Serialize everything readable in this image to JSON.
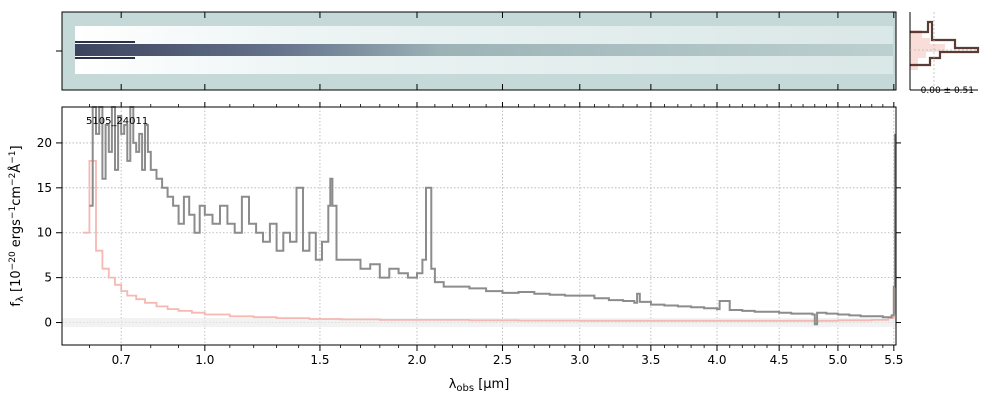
{
  "figure": {
    "object_id": "5105_24011",
    "profile_label": "0.00 ± 0.51"
  },
  "chart_data": {
    "type": "line",
    "xlabel_html": "λ<tspan font-size='10' dy='3'>obs</tspan><tspan dy='-3'> [μm]</tspan>",
    "ylabel_text": "f_λ [10^-20 ergs^-1 cm^-2 Å^-1]",
    "x_ticks": [
      0.7,
      1.0,
      1.5,
      2.0,
      2.5,
      3.0,
      3.5,
      4.0,
      4.5,
      5.0,
      5.5
    ],
    "x_tick_labels": [
      "0.7",
      "1.0",
      "1.5",
      "2.0",
      "2.5",
      "3.0",
      "3.5",
      "4.0",
      "4.5",
      "5.0",
      "5.5"
    ],
    "y_ticks": [
      0,
      5,
      10,
      15,
      20
    ],
    "y_tick_labels": [
      "0",
      "5",
      "10",
      "15",
      "20"
    ],
    "xlim": [
      0.52,
      5.52
    ],
    "ylim": [
      -2.5,
      24
    ],
    "x_scale": "sqrt",
    "grid": true,
    "series": [
      {
        "role": "flux",
        "color": "#8c8c8c",
        "x": [
          0.6,
          0.61,
          0.62,
          0.63,
          0.64,
          0.65,
          0.66,
          0.67,
          0.68,
          0.69,
          0.7,
          0.71,
          0.72,
          0.73,
          0.74,
          0.75,
          0.76,
          0.77,
          0.78,
          0.79,
          0.8,
          0.82,
          0.84,
          0.86,
          0.88,
          0.9,
          0.92,
          0.94,
          0.96,
          0.98,
          1.0,
          1.03,
          1.06,
          1.09,
          1.12,
          1.15,
          1.18,
          1.21,
          1.24,
          1.27,
          1.3,
          1.33,
          1.36,
          1.39,
          1.42,
          1.45,
          1.48,
          1.51,
          1.54,
          1.55,
          1.56,
          1.58,
          1.6,
          1.65,
          1.7,
          1.75,
          1.8,
          1.85,
          1.9,
          1.95,
          2.0,
          2.03,
          2.05,
          2.08,
          2.1,
          2.15,
          2.2,
          2.3,
          2.4,
          2.5,
          2.6,
          2.7,
          2.8,
          2.9,
          3.0,
          3.1,
          3.2,
          3.3,
          3.38,
          3.4,
          3.42,
          3.5,
          3.6,
          3.7,
          3.8,
          3.9,
          4.0,
          4.02,
          4.1,
          4.2,
          4.3,
          4.4,
          4.5,
          4.6,
          4.7,
          4.78,
          4.8,
          4.82,
          4.9,
          5.0,
          5.1,
          5.2,
          5.3,
          5.4,
          5.45,
          5.48,
          5.5,
          5.51
        ],
        "y": [
          13,
          30,
          21,
          24,
          16,
          22,
          19,
          25,
          17,
          23,
          21,
          22,
          18,
          24,
          20,
          19,
          21,
          17,
          22,
          19,
          17,
          16,
          15,
          14,
          13,
          11,
          14,
          12,
          10,
          13,
          12,
          11,
          13,
          11,
          10,
          14,
          11,
          10,
          9,
          11,
          8,
          10,
          9,
          15,
          8,
          10,
          7,
          9,
          13,
          16,
          13,
          7,
          7,
          7,
          6,
          6.5,
          5,
          6,
          5.5,
          5,
          5.5,
          7,
          15,
          6,
          4.5,
          4,
          4,
          3.8,
          3.5,
          3.3,
          3.4,
          3.2,
          3.1,
          3,
          3,
          2.7,
          2.5,
          2.4,
          2.2,
          3.2,
          2.3,
          2.0,
          1.9,
          1.8,
          1.7,
          1.6,
          1.5,
          2.4,
          1.4,
          1.3,
          1.2,
          1.2,
          1.1,
          1.0,
          1.0,
          0.9,
          -0.2,
          1.1,
          1.0,
          0.9,
          0.8,
          0.7,
          0.7,
          0.6,
          0.6,
          0.8,
          4.0,
          21
        ]
      },
      {
        "role": "error",
        "color": "#f5b8b3",
        "x": [
          0.58,
          0.6,
          0.62,
          0.64,
          0.66,
          0.68,
          0.7,
          0.72,
          0.75,
          0.78,
          0.82,
          0.86,
          0.9,
          0.95,
          1.0,
          1.1,
          1.2,
          1.3,
          1.45,
          1.6,
          1.8,
          2.0,
          2.3,
          2.6,
          3.0,
          3.5,
          4.0,
          4.5,
          5.0,
          5.3,
          5.45,
          5.5,
          5.51
        ],
        "y": [
          10,
          18,
          8,
          6,
          5,
          4.2,
          3.5,
          3.0,
          2.6,
          2.2,
          1.8,
          1.5,
          1.3,
          1.1,
          0.9,
          0.7,
          0.6,
          0.5,
          0.4,
          0.35,
          0.3,
          0.3,
          0.25,
          0.22,
          0.2,
          0.2,
          0.2,
          0.2,
          0.25,
          0.3,
          0.5,
          1.0,
          19
        ]
      }
    ]
  }
}
